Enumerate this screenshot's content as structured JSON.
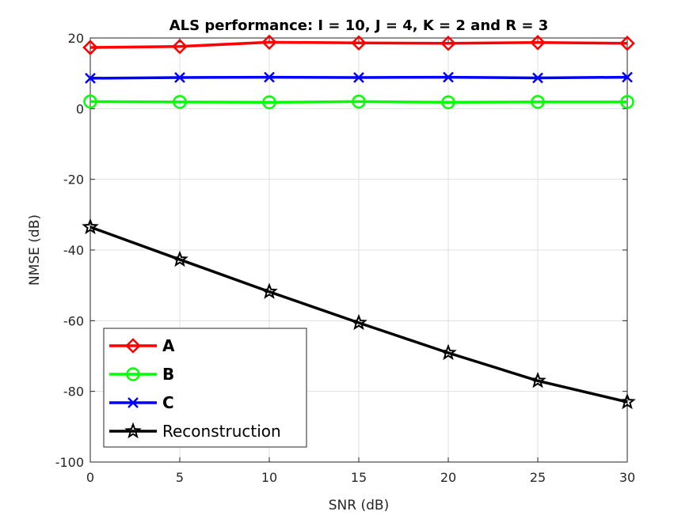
{
  "chart_data": {
    "type": "line",
    "title": "ALS performance: I = 10, J = 4, K = 2 and R = 3",
    "xlabel": "SNR (dB)",
    "ylabel": "NMSE (dB)",
    "xlim": [
      0,
      30
    ],
    "ylim": [
      -100,
      20
    ],
    "xticks": [
      0,
      5,
      10,
      15,
      20,
      25,
      30
    ],
    "yticks": [
      -100,
      -80,
      -60,
      -40,
      -20,
      0,
      20
    ],
    "grid": true,
    "legend_position": "bottom-left",
    "x": [
      0,
      5,
      10,
      15,
      20,
      25,
      30
    ],
    "series": [
      {
        "name": "A",
        "color": "#ff0000",
        "marker": "diamond",
        "values": [
          17.3,
          17.6,
          18.8,
          18.6,
          18.5,
          18.7,
          18.5
        ]
      },
      {
        "name": "B",
        "color": "#00ff00",
        "marker": "circle",
        "values": [
          2.0,
          1.9,
          1.8,
          2.0,
          1.8,
          1.9,
          1.9
        ]
      },
      {
        "name": "C",
        "color": "#0000ff",
        "marker": "x",
        "values": [
          8.6,
          8.8,
          8.9,
          8.8,
          8.9,
          8.7,
          8.9
        ]
      },
      {
        "name": "Reconstruction",
        "color": "#000000",
        "marker": "star",
        "values": [
          -33.5,
          -42.7,
          -51.8,
          -60.6,
          -69.1,
          -77.0,
          -83.0
        ]
      }
    ]
  }
}
